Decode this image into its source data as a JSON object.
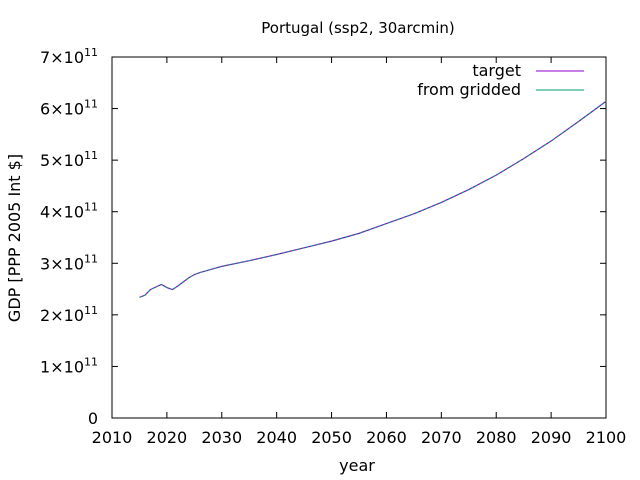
{
  "chart_data": {
    "type": "line",
    "title": "Portugal (ssp2, 30arcmin)",
    "xlabel": "year",
    "ylabel": "GDP [PPP 2005 Int $]",
    "xlim": [
      2010,
      2100
    ],
    "ylim": [
      0,
      700000000000
    ],
    "x_ticks": [
      2010,
      2020,
      2030,
      2040,
      2050,
      2060,
      2070,
      2080,
      2090,
      2100
    ],
    "y_ticks": [
      {
        "value": 0,
        "mantissa": "0",
        "exponent": ""
      },
      {
        "value": 100000000000,
        "mantissa": "1×10",
        "exponent": "11"
      },
      {
        "value": 200000000000,
        "mantissa": "2×10",
        "exponent": "11"
      },
      {
        "value": 300000000000,
        "mantissa": "3×10",
        "exponent": "11"
      },
      {
        "value": 400000000000,
        "mantissa": "4×10",
        "exponent": "11"
      },
      {
        "value": 500000000000,
        "mantissa": "5×10",
        "exponent": "11"
      },
      {
        "value": 600000000000,
        "mantissa": "6×10",
        "exponent": "11"
      },
      {
        "value": 700000000000,
        "mantissa": "7×10",
        "exponent": "11"
      }
    ],
    "grid": false,
    "legend_position": "top-right",
    "series": [
      {
        "name": "target",
        "color": "#9400d3",
        "x": [
          2015,
          2016,
          2017,
          2018,
          2019,
          2020,
          2021,
          2022,
          2023,
          2024,
          2025,
          2026,
          2027,
          2028,
          2029,
          2030,
          2035,
          2040,
          2045,
          2050,
          2055,
          2060,
          2065,
          2070,
          2075,
          2080,
          2085,
          2090,
          2095,
          2100
        ],
        "y": [
          234000000000,
          238000000000,
          249000000000,
          254000000000,
          259000000000,
          253000000000,
          249000000000,
          256000000000,
          264000000000,
          272000000000,
          278000000000,
          282000000000,
          285000000000,
          288000000000,
          291000000000,
          294000000000,
          305000000000,
          317000000000,
          330000000000,
          343000000000,
          358000000000,
          377000000000,
          396000000000,
          418000000000,
          443000000000,
          471000000000,
          503000000000,
          537000000000,
          575000000000,
          614000000000
        ]
      },
      {
        "name": "from gridded",
        "color": "#009e73",
        "x": [
          2015,
          2016,
          2017,
          2018,
          2019,
          2020,
          2021,
          2022,
          2023,
          2024,
          2025,
          2026,
          2027,
          2028,
          2029,
          2030,
          2035,
          2040,
          2045,
          2050,
          2055,
          2060,
          2065,
          2070,
          2075,
          2080,
          2085,
          2090,
          2095,
          2100
        ],
        "y": [
          234000000000,
          238000000000,
          249000000000,
          254000000000,
          259000000000,
          253000000000,
          249000000000,
          256000000000,
          264000000000,
          272000000000,
          278000000000,
          282000000000,
          285000000000,
          288000000000,
          291000000000,
          294000000000,
          305000000000,
          317000000000,
          330000000000,
          343000000000,
          358000000000,
          377000000000,
          396000000000,
          418000000000,
          443000000000,
          471000000000,
          503000000000,
          537000000000,
          575000000000,
          614000000000
        ]
      }
    ]
  }
}
